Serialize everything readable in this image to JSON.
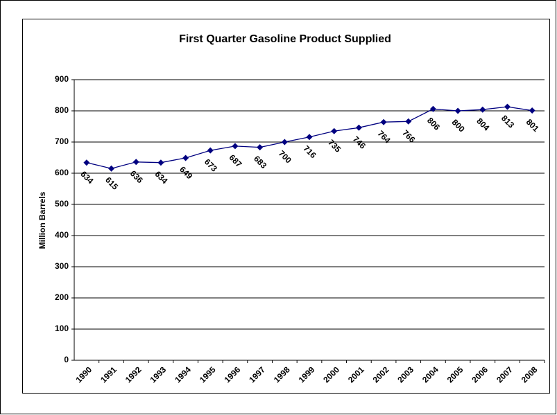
{
  "chart_data": {
    "type": "line",
    "title": "First Quarter Gasoline Product Supplied",
    "y_label": "Million Barrels",
    "categories": [
      "1990",
      "1991",
      "1992",
      "1993",
      "1994",
      "1995",
      "1996",
      "1997",
      "1998",
      "1999",
      "2000",
      "2001",
      "2002",
      "2003",
      "2004",
      "2005",
      "2006",
      "2007",
      "2008"
    ],
    "values": [
      634,
      615,
      636,
      634,
      649,
      673,
      687,
      683,
      700,
      716,
      735,
      746,
      764,
      766,
      806,
      800,
      804,
      813,
      801
    ],
    "color": "#000080",
    "ylim": [
      0,
      900
    ],
    "yticks": [
      0,
      100,
      200,
      300,
      400,
      500,
      600,
      700,
      800,
      900
    ],
    "grid": true
  }
}
